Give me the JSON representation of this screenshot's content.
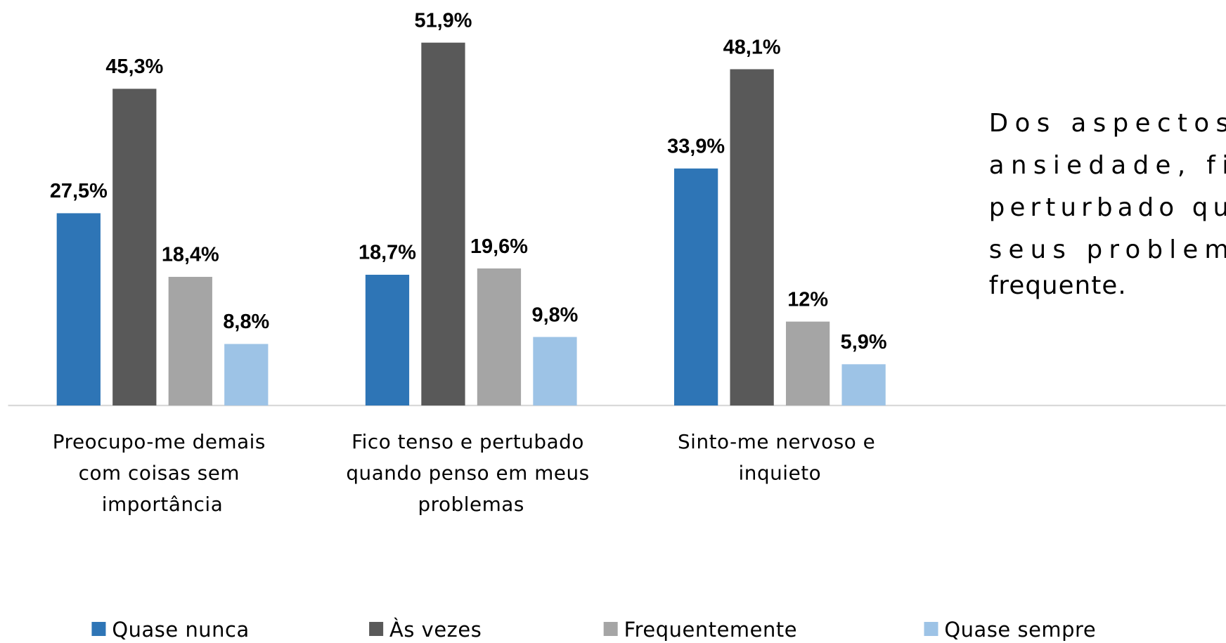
{
  "chart_data": {
    "type": "bar",
    "categories": [
      "Preocupo-me demais com coisas sem importância",
      "Fico tenso e pertubado quando penso em meus problemas",
      "Sinto-me nervoso e inquieto"
    ],
    "series": [
      {
        "name": "Quase nunca",
        "color": "#2e75b6",
        "values": [
          27.5,
          18.7,
          33.9
        ],
        "value_labels": [
          "27,5%",
          "18,7%",
          "33,9%"
        ]
      },
      {
        "name": "Às vezes",
        "color": "#595959",
        "values": [
          45.3,
          51.9,
          48.1
        ],
        "value_labels": [
          "45,3%",
          "51,9%",
          "48,1%"
        ]
      },
      {
        "name": "Frequentemente",
        "color": "#a5a5a5",
        "values": [
          18.4,
          19.6,
          12
        ],
        "value_labels": [
          "18,4%",
          "19,6%",
          "12%"
        ]
      },
      {
        "name": "Quase sempre",
        "color": "#9dc3e6",
        "values": [
          8.8,
          9.8,
          5.9
        ],
        "value_labels": [
          "8,8%",
          "9,8%",
          "5,9%"
        ]
      }
    ],
    "ylim": [
      0,
      58
    ],
    "legend": "bottom",
    "annotation_lines": [
      "Dos aspectos",
      "ansiedade, fi",
      "perturbado qu",
      "seus problem",
      "frequente."
    ]
  }
}
